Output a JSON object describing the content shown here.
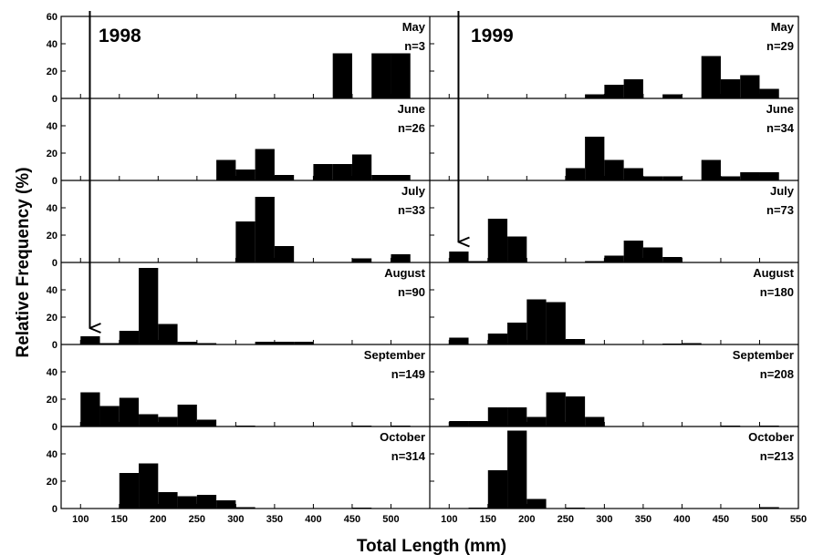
{
  "chart_data": {
    "type": "bar",
    "xlabel": "Total Length (mm)",
    "ylabel": "Relative Frequency (%)",
    "ylim": [
      0,
      60
    ],
    "xlim": [
      75,
      550
    ],
    "bin_width": 25,
    "x_ticks": [
      100,
      150,
      200,
      250,
      300,
      350,
      400,
      450,
      500,
      550
    ],
    "y_ticks": [
      0,
      20,
      40,
      60
    ],
    "columns": [
      {
        "year": "1998",
        "x_ticks": [
          100,
          150,
          200,
          250,
          300,
          350,
          400,
          450,
          500
        ],
        "panels": [
          {
            "month": "May",
            "n": "n=3",
            "bins": [
              {
                "x": 425,
                "value": 33
              },
              {
                "x": 475,
                "value": 33
              },
              {
                "x": 500,
                "value": 33
              }
            ]
          },
          {
            "month": "June",
            "n": "n=26",
            "bins": [
              {
                "x": 275,
                "value": 15
              },
              {
                "x": 300,
                "value": 8
              },
              {
                "x": 325,
                "value": 23
              },
              {
                "x": 350,
                "value": 4
              },
              {
                "x": 400,
                "value": 12
              },
              {
                "x": 425,
                "value": 12
              },
              {
                "x": 450,
                "value": 19
              },
              {
                "x": 475,
                "value": 4
              },
              {
                "x": 500,
                "value": 4
              }
            ]
          },
          {
            "month": "July",
            "n": "n=33",
            "bins": [
              {
                "x": 300,
                "value": 30
              },
              {
                "x": 325,
                "value": 48
              },
              {
                "x": 350,
                "value": 12
              },
              {
                "x": 450,
                "value": 3
              },
              {
                "x": 500,
                "value": 6
              }
            ]
          },
          {
            "month": "August",
            "n": "n=90",
            "bins": [
              {
                "x": 100,
                "value": 6
              },
              {
                "x": 125,
                "value": 1
              },
              {
                "x": 150,
                "value": 10
              },
              {
                "x": 175,
                "value": 56
              },
              {
                "x": 200,
                "value": 15
              },
              {
                "x": 225,
                "value": 2
              },
              {
                "x": 250,
                "value": 1
              },
              {
                "x": 325,
                "value": 2
              },
              {
                "x": 350,
                "value": 2
              },
              {
                "x": 375,
                "value": 2
              }
            ]
          },
          {
            "month": "September",
            "n": "n=149",
            "bins": [
              {
                "x": 100,
                "value": 25
              },
              {
                "x": 125,
                "value": 15
              },
              {
                "x": 150,
                "value": 21
              },
              {
                "x": 175,
                "value": 9
              },
              {
                "x": 200,
                "value": 7
              },
              {
                "x": 225,
                "value": 16
              },
              {
                "x": 250,
                "value": 5
              },
              {
                "x": 300,
                "value": 0.5
              },
              {
                "x": 450,
                "value": 0.5
              },
              {
                "x": 500,
                "value": 0.5
              }
            ]
          },
          {
            "month": "October",
            "n": "n=314",
            "bins": [
              {
                "x": 150,
                "value": 26
              },
              {
                "x": 175,
                "value": 33
              },
              {
                "x": 200,
                "value": 12
              },
              {
                "x": 225,
                "value": 9
              },
              {
                "x": 250,
                "value": 10
              },
              {
                "x": 275,
                "value": 6
              },
              {
                "x": 300,
                "value": 1
              },
              {
                "x": 450,
                "value": 0.5
              }
            ]
          }
        ]
      },
      {
        "year": "1999",
        "x_ticks": [
          100,
          150,
          200,
          250,
          300,
          350,
          400,
          450,
          500,
          550
        ],
        "panels": [
          {
            "month": "May",
            "n": "n=29",
            "bins": [
              {
                "x": 275,
                "value": 3
              },
              {
                "x": 300,
                "value": 10
              },
              {
                "x": 325,
                "value": 14
              },
              {
                "x": 375,
                "value": 3
              },
              {
                "x": 425,
                "value": 31
              },
              {
                "x": 450,
                "value": 14
              },
              {
                "x": 475,
                "value": 17
              },
              {
                "x": 500,
                "value": 7
              }
            ]
          },
          {
            "month": "June",
            "n": "n=34",
            "bins": [
              {
                "x": 250,
                "value": 9
              },
              {
                "x": 275,
                "value": 32
              },
              {
                "x": 300,
                "value": 15
              },
              {
                "x": 325,
                "value": 9
              },
              {
                "x": 350,
                "value": 3
              },
              {
                "x": 375,
                "value": 3
              },
              {
                "x": 425,
                "value": 15
              },
              {
                "x": 450,
                "value": 3
              },
              {
                "x": 475,
                "value": 6
              },
              {
                "x": 500,
                "value": 6
              }
            ]
          },
          {
            "month": "July",
            "n": "n=73",
            "bins": [
              {
                "x": 100,
                "value": 8
              },
              {
                "x": 125,
                "value": 1
              },
              {
                "x": 150,
                "value": 32
              },
              {
                "x": 175,
                "value": 19
              },
              {
                "x": 275,
                "value": 1
              },
              {
                "x": 300,
                "value": 5
              },
              {
                "x": 325,
                "value": 16
              },
              {
                "x": 350,
                "value": 11
              },
              {
                "x": 375,
                "value": 4
              }
            ]
          },
          {
            "month": "August",
            "n": "n=180",
            "bins": [
              {
                "x": 100,
                "value": 5
              },
              {
                "x": 150,
                "value": 8
              },
              {
                "x": 175,
                "value": 16
              },
              {
                "x": 200,
                "value": 33
              },
              {
                "x": 225,
                "value": 31
              },
              {
                "x": 250,
                "value": 4
              },
              {
                "x": 375,
                "value": 0.5
              },
              {
                "x": 400,
                "value": 1
              }
            ]
          },
          {
            "month": "September",
            "n": "n=208",
            "bins": [
              {
                "x": 100,
                "value": 4
              },
              {
                "x": 125,
                "value": 4
              },
              {
                "x": 150,
                "value": 14
              },
              {
                "x": 175,
                "value": 14
              },
              {
                "x": 200,
                "value": 7
              },
              {
                "x": 225,
                "value": 25
              },
              {
                "x": 250,
                "value": 22
              },
              {
                "x": 275,
                "value": 7
              },
              {
                "x": 450,
                "value": 0.5
              },
              {
                "x": 500,
                "value": 0.5
              }
            ]
          },
          {
            "month": "October",
            "n": "n=213",
            "bins": [
              {
                "x": 125,
                "value": 0.5
              },
              {
                "x": 150,
                "value": 28
              },
              {
                "x": 175,
                "value": 57
              },
              {
                "x": 200,
                "value": 7
              },
              {
                "x": 250,
                "value": 0.5
              },
              {
                "x": 500,
                "value": 1
              }
            ]
          }
        ]
      }
    ],
    "annotations": [
      {
        "type": "arrow",
        "column": "1998",
        "x": 112,
        "from_panel": "May",
        "to_panel": "August",
        "tip_value": 12
      },
      {
        "type": "arrow",
        "column": "1999",
        "x": 112,
        "from_panel": "May",
        "to_panel": "July",
        "tip_value": 15
      }
    ]
  }
}
